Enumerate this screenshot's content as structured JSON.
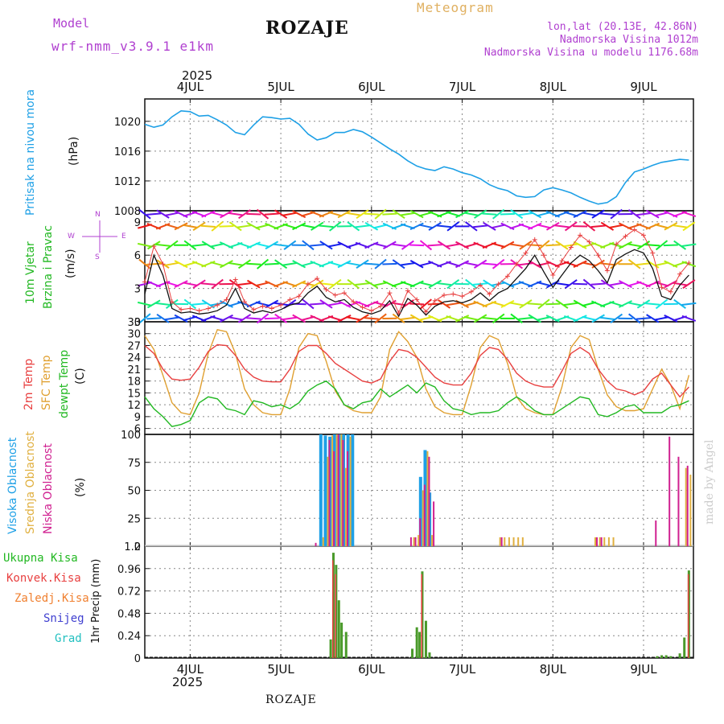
{
  "header": {
    "model_label": "Model",
    "model_name": "wrf-nmm_v3.9.1  e1km",
    "station": "ROZAJE",
    "meteogram_label": "Meteogram",
    "lonlat": "lon,lat (20.13E, 42.86N)",
    "elevation": "Nadmorska Visina 1012m",
    "model_elevation": "Nadmorska Visina u modelu 1176.68m",
    "year_top": "2025",
    "year_bottom": "2025",
    "footer_station": "ROZAJE",
    "watermark": "made by Angel"
  },
  "colors": {
    "pressure": "#1ea0e6",
    "t2m": "#e84040",
    "sfc": "#e0a030",
    "dewpt": "#22b822",
    "high_cloud": "#1ea0e6",
    "mid_cloud": "#e0b040",
    "low_cloud": "#d02090",
    "total_precip": "#4a9a2a",
    "conv_precip": "#e84040",
    "snow": "#4040d0",
    "grid": "#888888"
  },
  "chart_data": [
    {
      "type": "line",
      "panel": "pressure",
      "ylabel_main": "Pritisak na nivou mora",
      "unit": "(hPa)",
      "ylim": [
        1008,
        1023
      ],
      "yticks": [
        "1008",
        "1012",
        "1016",
        "1020"
      ],
      "x_day_labels": [
        "4JUL",
        "5JUL",
        "6JUL",
        "7JUL",
        "8JUL",
        "9JUL"
      ],
      "x": [
        3.5,
        3.6,
        3.7,
        3.8,
        3.9,
        4.0,
        4.1,
        4.2,
        4.3,
        4.4,
        4.5,
        4.6,
        4.7,
        4.8,
        4.9,
        5.0,
        5.1,
        5.2,
        5.3,
        5.4,
        5.5,
        5.6,
        5.7,
        5.8,
        5.9,
        6.0,
        6.1,
        6.2,
        6.3,
        6.4,
        6.5,
        6.6,
        6.7,
        6.8,
        6.9,
        7.0,
        7.1,
        7.2,
        7.3,
        7.4,
        7.5,
        7.6,
        7.7,
        7.8,
        7.9,
        8.0,
        8.1,
        8.2,
        8.3,
        8.4,
        8.5,
        8.6,
        8.7,
        8.8,
        8.9,
        9.0,
        9.1,
        9.2,
        9.3,
        9.4,
        9.5
      ],
      "y": [
        1019.6,
        1019.2,
        1019.5,
        1020.6,
        1021.4,
        1021.3,
        1020.7,
        1020.8,
        1020.2,
        1019.5,
        1018.5,
        1018.2,
        1019.5,
        1020.6,
        1020.5,
        1020.3,
        1020.4,
        1019.6,
        1018.3,
        1017.5,
        1017.8,
        1018.5,
        1018.5,
        1018.9,
        1018.6,
        1017.9,
        1017.1,
        1016.3,
        1015.6,
        1014.7,
        1014.0,
        1013.6,
        1013.4,
        1013.9,
        1013.6,
        1013.1,
        1012.8,
        1012.3,
        1011.5,
        1011.0,
        1010.7,
        1010.0,
        1009.8,
        1009.9,
        1010.8,
        1011.1,
        1010.8,
        1010.4,
        1009.8,
        1009.3,
        1008.9,
        1009.1,
        1009.9,
        1011.8,
        1013.2,
        1013.6,
        1014.1,
        1014.5,
        1014.7,
        1014.9,
        1014.8
      ]
    },
    {
      "type": "line",
      "panel": "wind",
      "ylabel_main": "10m Vjetar",
      "ylabel_sub": "Brzina i Pravac",
      "unit": "(m/s)",
      "compass": {
        "n": "N",
        "w": "W",
        "e": "E",
        "s": "S"
      },
      "ylim": [
        0,
        10
      ],
      "yticks": [
        "0",
        "3",
        "6",
        "9"
      ],
      "x": [
        3.5,
        3.6,
        3.7,
        3.8,
        3.9,
        4.0,
        4.1,
        4.2,
        4.3,
        4.4,
        4.5,
        4.6,
        4.7,
        4.8,
        4.9,
        5.0,
        5.1,
        5.2,
        5.3,
        5.4,
        5.5,
        5.6,
        5.7,
        5.8,
        5.9,
        6.0,
        6.1,
        6.2,
        6.3,
        6.4,
        6.5,
        6.6,
        6.7,
        6.8,
        6.9,
        7.0,
        7.1,
        7.2,
        7.3,
        7.4,
        7.5,
        7.6,
        7.7,
        7.8,
        7.9,
        8.0,
        8.1,
        8.2,
        8.3,
        8.4,
        8.5,
        8.6,
        8.7,
        8.8,
        8.9,
        9.0,
        9.1,
        9.2,
        9.3,
        9.4,
        9.5
      ],
      "speed": [
        2.5,
        6.0,
        4.2,
        1.2,
        0.8,
        0.9,
        0.7,
        0.8,
        1.0,
        1.5,
        3.0,
        1.2,
        0.8,
        1.0,
        0.8,
        1.1,
        1.5,
        1.7,
        2.6,
        3.2,
        2.2,
        1.8,
        2.0,
        1.3,
        0.9,
        0.7,
        1.0,
        1.9,
        0.5,
        2.1,
        1.5,
        0.6,
        1.4,
        1.8,
        1.9,
        1.7,
        2.0,
        2.6,
        1.9,
        2.6,
        3.0,
        3.9,
        4.8,
        6.0,
        4.5,
        3.1,
        4.2,
        5.3,
        6.0,
        5.5,
        4.6,
        3.5,
        5.6,
        6.1,
        6.5,
        6.2,
        4.8,
        2.3,
        2.0,
        3.3,
        4.2
      ],
      "gust": [
        3.6,
        6.8,
        5.2,
        1.8,
        1.1,
        1.2,
        1.0,
        1.2,
        1.5,
        2.0,
        3.8,
        1.8,
        1.1,
        1.4,
        1.2,
        1.5,
        2.0,
        2.3,
        3.4,
        3.9,
        2.9,
        2.4,
        2.6,
        1.8,
        1.3,
        1.0,
        1.4,
        2.6,
        0.8,
        2.8,
        2.0,
        0.9,
        1.9,
        2.4,
        2.5,
        2.3,
        2.7,
        3.3,
        2.5,
        3.4,
        4.1,
        5.2,
        6.2,
        7.4,
        6.0,
        4.2,
        5.5,
        6.7,
        7.8,
        7.2,
        6.0,
        4.6,
        7.0,
        7.7,
        8.3,
        7.8,
        6.2,
        3.1,
        2.7,
        4.3,
        5.3
      ]
    },
    {
      "type": "line",
      "panel": "temperature",
      "label_t2m": "2m Temp",
      "label_sfc": "SFC Temp",
      "label_dewpt": "dewpt Temp",
      "unit": "(C)",
      "ylim": [
        4.5,
        33
      ],
      "yticks": [
        "6",
        "9",
        "12",
        "15",
        "18",
        "21",
        "24",
        "27",
        "30",
        "33"
      ],
      "x": [
        3.5,
        3.6,
        3.7,
        3.8,
        3.9,
        4.0,
        4.1,
        4.2,
        4.3,
        4.4,
        4.5,
        4.6,
        4.7,
        4.8,
        4.9,
        5.0,
        5.1,
        5.2,
        5.3,
        5.4,
        5.5,
        5.6,
        5.7,
        5.8,
        5.9,
        6.0,
        6.1,
        6.2,
        6.3,
        6.4,
        6.5,
        6.6,
        6.7,
        6.8,
        6.9,
        7.0,
        7.1,
        7.2,
        7.3,
        7.4,
        7.5,
        7.6,
        7.7,
        7.8,
        7.9,
        8.0,
        8.1,
        8.2,
        8.3,
        8.4,
        8.5,
        8.6,
        8.7,
        8.8,
        8.9,
        9.0,
        9.1,
        9.2,
        9.3,
        9.4,
        9.5
      ],
      "t2m": [
        27.0,
        25.0,
        21.0,
        18.5,
        18.2,
        18.5,
        21.5,
        25.5,
        27.2,
        27.0,
        24.5,
        21.0,
        19.0,
        18.0,
        17.8,
        17.8,
        21.0,
        25.5,
        27.0,
        27.0,
        25.0,
        22.5,
        21.0,
        19.5,
        18.0,
        17.5,
        18.5,
        23.0,
        26.0,
        25.5,
        24.0,
        21.5,
        19.0,
        17.5,
        17.0,
        17.0,
        20.0,
        24.5,
        26.5,
        26.0,
        23.5,
        20.0,
        18.0,
        17.0,
        16.5,
        16.5,
        20.5,
        25.0,
        26.5,
        25.0,
        21.0,
        18.0,
        16.0,
        15.5,
        14.5,
        15.5,
        18.5,
        20.0,
        17.0,
        14.0,
        16.5
      ],
      "sfc": [
        29.5,
        26.0,
        19.5,
        12.5,
        10.0,
        9.5,
        15.0,
        25.0,
        31.0,
        30.5,
        25.0,
        16.0,
        12.0,
        10.0,
        9.5,
        9.5,
        16.0,
        26.5,
        30.0,
        29.5,
        23.0,
        15.5,
        12.0,
        10.5,
        10.0,
        10.0,
        14.0,
        26.0,
        30.5,
        28.0,
        24.0,
        16.0,
        11.5,
        10.0,
        9.5,
        9.5,
        17.0,
        26.5,
        29.5,
        28.5,
        22.5,
        14.0,
        11.0,
        10.0,
        9.5,
        9.5,
        16.5,
        26.5,
        29.5,
        28.5,
        21.0,
        14.5,
        11.5,
        10.5,
        10.5,
        11.0,
        16.0,
        21.0,
        17.0,
        11.0,
        19.5
      ],
      "dewpt": [
        14.0,
        11.0,
        9.0,
        6.5,
        7.0,
        8.0,
        12.5,
        14.0,
        13.5,
        11.0,
        10.5,
        9.5,
        13.0,
        12.5,
        11.5,
        12.0,
        11.0,
        12.5,
        15.5,
        17.0,
        18.0,
        16.0,
        12.0,
        11.0,
        12.5,
        13.0,
        16.0,
        14.0,
        15.5,
        17.0,
        15.0,
        17.5,
        16.5,
        13.0,
        11.0,
        10.5,
        9.5,
        10.0,
        10.0,
        10.5,
        12.5,
        14.0,
        12.5,
        10.5,
        9.5,
        9.5,
        11.0,
        12.5,
        14.0,
        13.5,
        9.5,
        9.0,
        10.0,
        11.5,
        12.0,
        10.0,
        10.0,
        10.0,
        11.5,
        12.0,
        13.0
      ]
    },
    {
      "type": "bar",
      "panel": "clouds",
      "label_high": "Visoka Oblacnost",
      "label_mid": "Srednja Oblacnost",
      "label_low": "Niska Oblacnost",
      "unit": "(%)",
      "ylim": [
        0,
        100
      ],
      "yticks": [
        "0",
        "25",
        "50",
        "75",
        "100"
      ],
      "high": [
        [
          5.45,
          100
        ],
        [
          5.5,
          99
        ],
        [
          5.55,
          98
        ],
        [
          5.6,
          100
        ],
        [
          5.65,
          100
        ],
        [
          5.7,
          100
        ],
        [
          5.75,
          100
        ],
        [
          5.8,
          100
        ],
        [
          6.55,
          62
        ],
        [
          6.6,
          86
        ],
        [
          6.65,
          48
        ]
      ],
      "mid": [
        [
          5.45,
          8
        ],
        [
          5.5,
          80
        ],
        [
          5.55,
          99
        ],
        [
          5.6,
          100
        ],
        [
          5.65,
          100
        ],
        [
          5.7,
          70
        ],
        [
          5.75,
          98
        ],
        [
          6.45,
          8
        ],
        [
          6.5,
          10
        ],
        [
          6.55,
          50
        ],
        [
          6.6,
          85
        ],
        [
          6.65,
          10
        ],
        [
          7.4,
          8
        ],
        [
          7.45,
          8
        ],
        [
          7.5,
          8
        ],
        [
          7.55,
          8
        ],
        [
          7.6,
          8
        ],
        [
          7.65,
          8
        ],
        [
          8.45,
          8
        ],
        [
          8.5,
          8
        ],
        [
          8.55,
          8
        ],
        [
          8.6,
          8
        ],
        [
          8.65,
          8
        ],
        [
          9.45,
          70
        ],
        [
          9.5,
          64
        ]
      ],
      "low": [
        [
          5.35,
          3
        ],
        [
          5.5,
          95
        ],
        [
          5.55,
          85
        ],
        [
          5.6,
          100
        ],
        [
          5.65,
          95
        ],
        [
          5.7,
          85
        ],
        [
          6.4,
          8
        ],
        [
          6.45,
          8
        ],
        [
          6.5,
          25
        ],
        [
          6.55,
          55
        ],
        [
          6.6,
          80
        ],
        [
          6.65,
          40
        ],
        [
          7.4,
          8
        ],
        [
          8.45,
          8
        ],
        [
          8.5,
          8
        ],
        [
          9.1,
          23
        ],
        [
          9.25,
          98
        ],
        [
          9.35,
          80
        ],
        [
          9.45,
          72
        ]
      ]
    },
    {
      "type": "bar",
      "panel": "precipitation",
      "label_total": "Ukupna Kisa",
      "label_conv": "Konvek.Kisa",
      "label_frozen": "Zaledj.Kisa",
      "label_snow": "Snijeg",
      "label_hail": "Grad",
      "ylabel": "1hr Precip (mm)",
      "ylim": [
        0,
        1.2
      ],
      "yticks": [
        "0",
        "0.24",
        "0.48",
        "0.72",
        "0.96",
        "1.2"
      ],
      "total": [
        [
          5.55,
          0.2
        ],
        [
          5.58,
          1.13
        ],
        [
          5.61,
          1.0
        ],
        [
          5.64,
          0.62
        ],
        [
          5.67,
          0.38
        ],
        [
          5.72,
          0.28
        ],
        [
          6.45,
          0.1
        ],
        [
          6.5,
          0.33
        ],
        [
          6.53,
          0.28
        ],
        [
          6.56,
          0.93
        ],
        [
          6.6,
          0.4
        ],
        [
          6.64,
          0.06
        ],
        [
          9.15,
          0.02
        ],
        [
          9.2,
          0.03
        ],
        [
          9.25,
          0.03
        ],
        [
          9.3,
          0.02
        ],
        [
          9.4,
          0.05
        ],
        [
          9.45,
          0.22
        ],
        [
          9.5,
          0.94
        ]
      ],
      "conv": [
        [
          5.58,
          1.05
        ],
        [
          5.61,
          0.9
        ],
        [
          6.56,
          0.9
        ],
        [
          9.5,
          0.9
        ]
      ]
    }
  ]
}
